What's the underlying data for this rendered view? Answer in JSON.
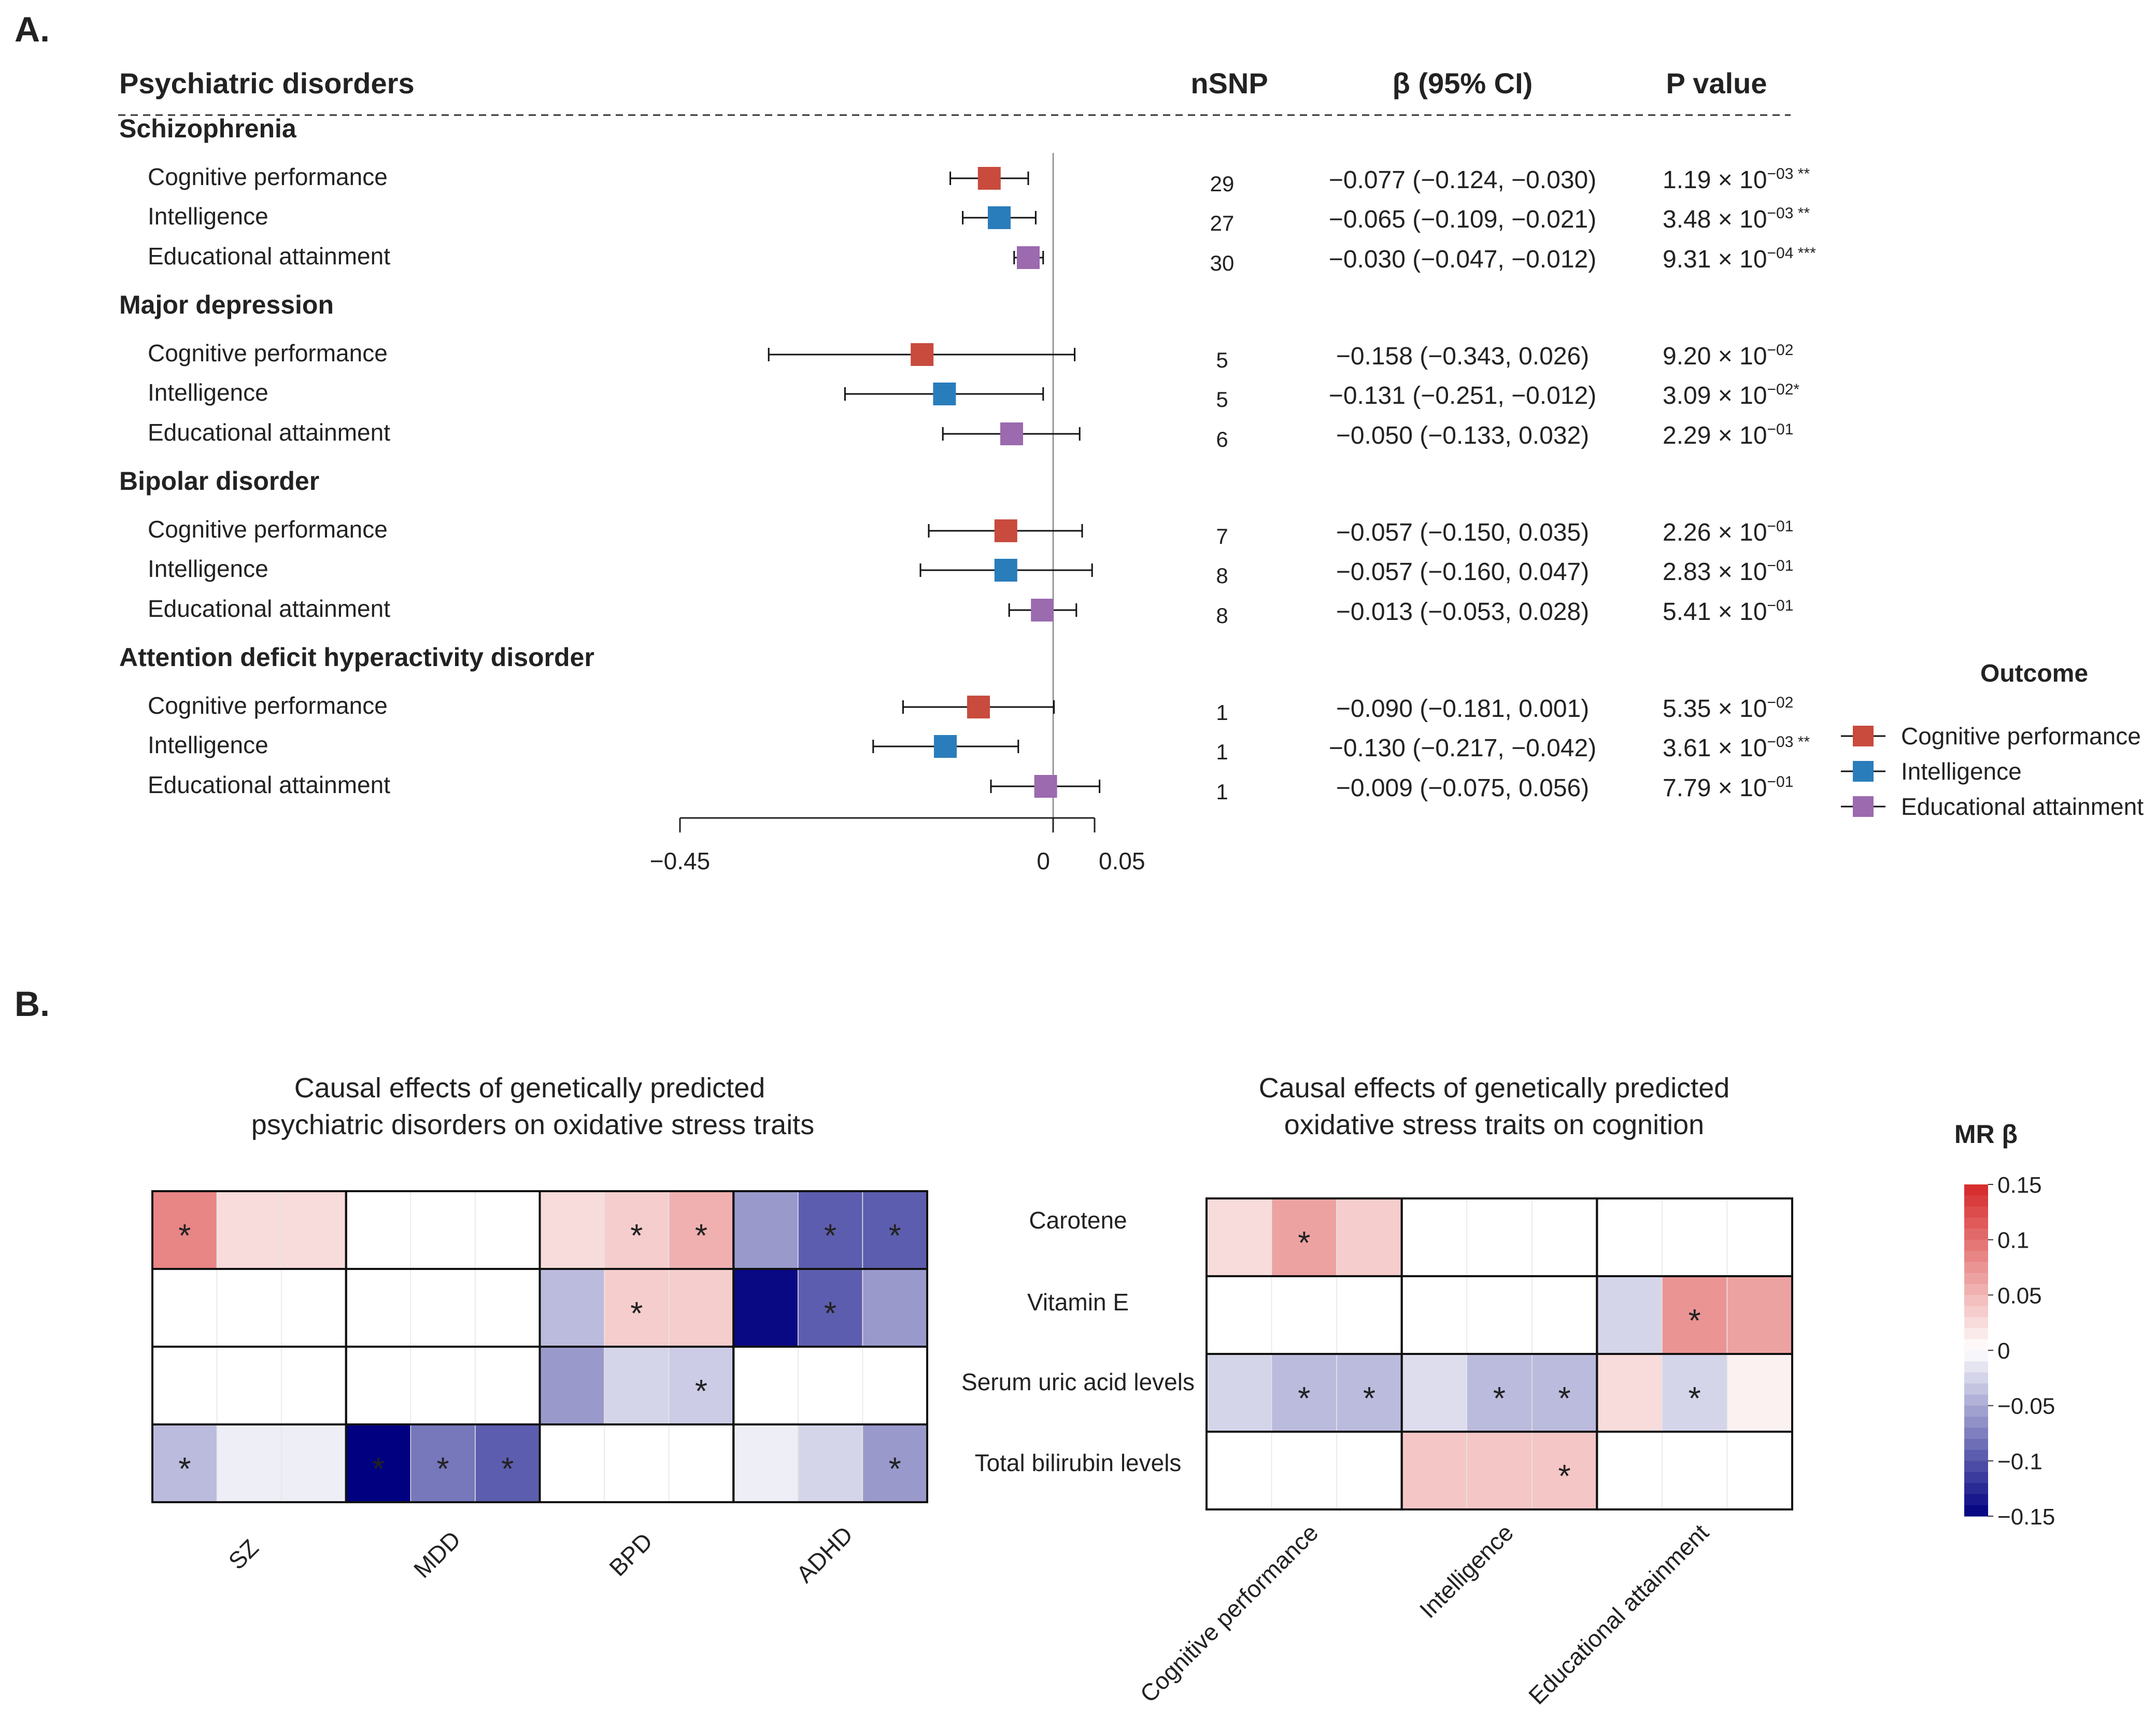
{
  "panel_a": {
    "label": "A.",
    "headers": {
      "group": "Psychiatric disorders",
      "nsnp": "nSNP",
      "beta": "β (95% CI)",
      "p": "P value"
    },
    "ticks": [
      "−0.45",
      "0",
      "0.05"
    ],
    "groups": [
      {
        "name": "Schizophrenia",
        "rows": [
          {
            "outcome": "Cognitive performance",
            "est": -0.077,
            "lo": -0.124,
            "hi": -0.03,
            "nsnp": "29",
            "ci": "−0.077 (−0.124, −0.030)",
            "p_base": "1.19 × 10",
            "p_exp": "−03",
            "sig": " **"
          },
          {
            "outcome": "Intelligence",
            "est": -0.065,
            "lo": -0.109,
            "hi": -0.021,
            "nsnp": "27",
            "ci": "−0.065 (−0.109, −0.021)",
            "p_base": "3.48 × 10",
            "p_exp": "−03",
            "sig": " **"
          },
          {
            "outcome": "Educational attainment",
            "est": -0.03,
            "lo": -0.047,
            "hi": -0.012,
            "nsnp": "30",
            "ci": "−0.030 (−0.047, −0.012)",
            "p_base": "9.31 × 10",
            "p_exp": "−04",
            "sig": " ***"
          }
        ]
      },
      {
        "name": "Major depression",
        "rows": [
          {
            "outcome": "Cognitive performance",
            "est": -0.158,
            "lo": -0.343,
            "hi": 0.026,
            "nsnp": "5",
            "ci": "−0.158 (−0.343, 0.026)",
            "p_base": "9.20 × 10",
            "p_exp": "−02",
            "sig": ""
          },
          {
            "outcome": "Intelligence",
            "est": -0.131,
            "lo": -0.251,
            "hi": -0.012,
            "nsnp": "5",
            "ci": "−0.131 (−0.251, −0.012)",
            "p_base": "3.09 × 10",
            "p_exp": "−02",
            "sig": "*"
          },
          {
            "outcome": "Educational attainment",
            "est": -0.05,
            "lo": -0.133,
            "hi": 0.032,
            "nsnp": "6",
            "ci": "−0.050 (−0.133, 0.032)",
            "p_base": "2.29 × 10",
            "p_exp": "−01",
            "sig": ""
          }
        ]
      },
      {
        "name": "Bipolar disorder",
        "rows": [
          {
            "outcome": "Cognitive performance",
            "est": -0.057,
            "lo": -0.15,
            "hi": 0.035,
            "nsnp": "7",
            "ci": "−0.057 (−0.150, 0.035)",
            "p_base": "2.26 × 10",
            "p_exp": "−01",
            "sig": ""
          },
          {
            "outcome": "Intelligence",
            "est": -0.057,
            "lo": -0.16,
            "hi": 0.047,
            "nsnp": "8",
            "ci": "−0.057 (−0.160, 0.047)",
            "p_base": "2.83 × 10",
            "p_exp": "−01",
            "sig": ""
          },
          {
            "outcome": "Educational attainment",
            "est": -0.013,
            "lo": -0.053,
            "hi": 0.028,
            "nsnp": "8",
            "ci": "−0.013 (−0.053, 0.028)",
            "p_base": "5.41 × 10",
            "p_exp": "−01",
            "sig": ""
          }
        ]
      },
      {
        "name": "Attention deficit hyperactivity disorder",
        "rows": [
          {
            "outcome": "Cognitive performance",
            "est": -0.09,
            "lo": -0.181,
            "hi": 0.001,
            "nsnp": "1",
            "ci": "−0.090 (−0.181, 0.001)",
            "p_base": "5.35 × 10",
            "p_exp": "−02",
            "sig": ""
          },
          {
            "outcome": "Intelligence",
            "est": -0.13,
            "lo": -0.217,
            "hi": -0.042,
            "nsnp": "1",
            "ci": "−0.130 (−0.217, −0.042)",
            "p_base": "3.61 × 10",
            "p_exp": "−03",
            "sig": " **"
          },
          {
            "outcome": "Educational attainment",
            "est": -0.009,
            "lo": -0.075,
            "hi": 0.056,
            "nsnp": "1",
            "ci": "−0.009 (−0.075, 0.056)",
            "p_base": "7.79 × 10",
            "p_exp": "−01",
            "sig": ""
          }
        ]
      }
    ],
    "legend": {
      "title": "Outcome",
      "items": [
        {
          "label": "Cognitive performance",
          "color": "#c84b3d"
        },
        {
          "label": "Intelligence",
          "color": "#2a7dbb"
        },
        {
          "label": "Educational attainment",
          "color": "#9b6aaf"
        }
      ]
    }
  },
  "panel_b": {
    "label": "B.",
    "left_title": [
      "Causal effects of genetically predicted",
      "psychiatric disorders on oxidative stress traits"
    ],
    "right_title": [
      "Causal effects of genetically predicted",
      "oxidative stress traits on cognition"
    ],
    "left_cols": [
      "SZ",
      "MDD",
      "BPD",
      "ADHD"
    ],
    "right_rows": [
      "Carotene",
      "Vitamin E",
      "Serum uric acid levels",
      "Total bilirubin levels"
    ],
    "right_cols": [
      "Cognitive performance",
      "Intelligence",
      "Educational attainment"
    ],
    "colorbar_title": "MR β",
    "colorbar_ticks": [
      "0.15",
      "0.1",
      "0.05",
      "0",
      "−0.05",
      "−0.1",
      "−0.15"
    ],
    "sig_marker": "*"
  },
  "chart_data": [
    {
      "type": "forest",
      "title": "Psychiatric disorders",
      "xlim": [
        -0.45,
        0.05
      ],
      "xticks": [
        -0.45,
        0,
        0.05
      ],
      "note": "points and CIs in panel_a.groups"
    },
    {
      "type": "heatmap",
      "title": "Causal effects of genetically predicted psychiatric disorders on oxidative stress traits",
      "col_groups": [
        "SZ",
        "MDD",
        "BPD",
        "ADHD"
      ],
      "sub_cols_per_group": 3,
      "values": [
        [
          0.085,
          0.025,
          0.025,
          null,
          null,
          null,
          0.025,
          0.035,
          0.055,
          -0.06,
          -0.095,
          -0.095
        ],
        [
          null,
          null,
          null,
          null,
          null,
          null,
          -0.04,
          0.035,
          0.035,
          -0.145,
          -0.095,
          -0.06
        ],
        [
          null,
          null,
          null,
          null,
          null,
          null,
          -0.06,
          -0.025,
          -0.03,
          null,
          null,
          null
        ],
        [
          -0.04,
          -0.01,
          -0.01,
          -0.165,
          -0.08,
          -0.095,
          null,
          null,
          null,
          -0.01,
          -0.025,
          -0.06
        ]
      ],
      "significant": [
        [
          true,
          false,
          false,
          false,
          false,
          false,
          false,
          true,
          true,
          false,
          true,
          true
        ],
        [
          false,
          false,
          false,
          false,
          false,
          false,
          false,
          true,
          false,
          false,
          true,
          false
        ],
        [
          false,
          false,
          false,
          false,
          false,
          false,
          false,
          false,
          true,
          false,
          false,
          false
        ],
        [
          true,
          false,
          false,
          true,
          true,
          true,
          false,
          false,
          false,
          false,
          false,
          true
        ]
      ],
      "clim": [
        -0.15,
        0.15
      ]
    },
    {
      "type": "heatmap",
      "title": "Causal effects of genetically predicted oxidative stress traits on cognition",
      "rows": [
        "Carotene",
        "Vitamin E",
        "Serum uric acid levels",
        "Total bilirubin levels"
      ],
      "col_groups": [
        "Cognitive performance",
        "Intelligence",
        "Educational attainment"
      ],
      "sub_cols_per_group": 3,
      "values": [
        [
          0.025,
          0.065,
          0.035,
          null,
          null,
          null,
          null,
          null,
          null
        ],
        [
          null,
          null,
          null,
          null,
          null,
          null,
          -0.025,
          0.075,
          0.065
        ],
        [
          -0.025,
          -0.04,
          -0.04,
          -0.02,
          -0.04,
          -0.04,
          0.025,
          -0.025,
          0.01
        ],
        [
          null,
          null,
          null,
          0.04,
          0.04,
          0.04,
          null,
          null,
          null
        ]
      ],
      "significant": [
        [
          false,
          true,
          false,
          false,
          false,
          false,
          false,
          false,
          false
        ],
        [
          false,
          false,
          false,
          false,
          false,
          false,
          false,
          true,
          false
        ],
        [
          false,
          true,
          true,
          false,
          true,
          true,
          false,
          true,
          false
        ],
        [
          false,
          false,
          false,
          false,
          false,
          true,
          false,
          false,
          false
        ]
      ],
      "clim": [
        -0.15,
        0.15
      ]
    }
  ]
}
